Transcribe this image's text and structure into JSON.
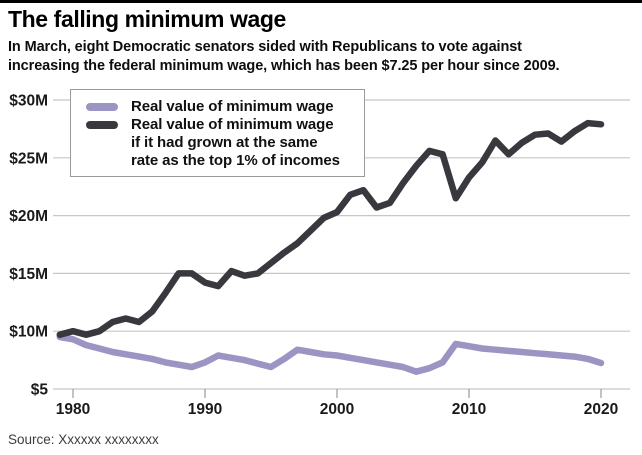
{
  "header": {
    "title": "The falling minimum wage",
    "subtitle_line1": "In March, eight Democratic senators sided with Republicans to vote against",
    "subtitle_line2": "increasing the federal minimum wage, which has been $7.25 per hour since 2009."
  },
  "legend": {
    "series1_label": "Real value of minimum wage",
    "series2_line1": "Real value of minimum wage",
    "series2_line2": "if it had grown at the same",
    "series2_line3": "rate as the top 1% of incomes"
  },
  "source_text": "Source: Xxxxxx xxxxxxxx",
  "colors": {
    "real_wage_line": "#9b95c3",
    "top1_line": "#38383f",
    "grid": "#c7c7c7",
    "tick": "#9a9a9a",
    "axis_text": "#1a1a1a"
  },
  "chart_data": {
    "type": "line",
    "title": "The falling minimum wage",
    "x": [
      1979,
      1980,
      1981,
      1982,
      1983,
      1984,
      1985,
      1986,
      1987,
      1988,
      1989,
      1990,
      1991,
      1992,
      1993,
      1994,
      1995,
      1996,
      1997,
      1998,
      1999,
      2000,
      2001,
      2002,
      2003,
      2004,
      2005,
      2006,
      2007,
      2008,
      2009,
      2010,
      2011,
      2012,
      2013,
      2014,
      2015,
      2016,
      2017,
      2018,
      2019,
      2020
    ],
    "series": [
      {
        "name": "Real value of minimum wage",
        "color_key": "real_wage_line",
        "values": [
          9.5,
          9.3,
          8.8,
          8.5,
          8.2,
          8.0,
          7.8,
          7.6,
          7.3,
          7.1,
          6.9,
          7.3,
          7.9,
          7.7,
          7.5,
          7.2,
          6.9,
          7.6,
          8.4,
          8.2,
          8.0,
          7.9,
          7.7,
          7.5,
          7.3,
          7.1,
          6.9,
          6.5,
          6.8,
          7.3,
          8.9,
          8.7,
          8.5,
          8.4,
          8.3,
          8.2,
          8.1,
          8.0,
          7.9,
          7.8,
          7.6,
          7.25
        ]
      },
      {
        "name": "Real value of minimum wage if it had grown at the same rate as the top 1% of incomes",
        "color_key": "top1_line",
        "values": [
          9.7,
          10.0,
          9.7,
          10.0,
          10.8,
          11.1,
          10.8,
          11.7,
          13.3,
          15.0,
          15.0,
          14.2,
          13.9,
          15.2,
          14.8,
          15.0,
          15.9,
          16.8,
          17.6,
          18.7,
          19.8,
          20.3,
          21.8,
          22.2,
          20.7,
          21.1,
          22.8,
          24.3,
          25.6,
          25.3,
          21.5,
          23.3,
          24.6,
          26.5,
          25.3,
          26.3,
          27.0,
          27.1,
          26.4,
          27.3,
          28.0,
          27.9
        ]
      }
    ],
    "y_ticks": [
      {
        "value": 30,
        "label": "$30M"
      },
      {
        "value": 25,
        "label": "$25M"
      },
      {
        "value": 20,
        "label": "$20M"
      },
      {
        "value": 15,
        "label": "$15M"
      },
      {
        "value": 10,
        "label": "$10M"
      },
      {
        "value": 5,
        "label": "$5"
      }
    ],
    "x_ticks": [
      1980,
      1990,
      2000,
      2010,
      2020
    ],
    "ylim": [
      5,
      30
    ],
    "grid": true,
    "legend_position": "top-left"
  }
}
